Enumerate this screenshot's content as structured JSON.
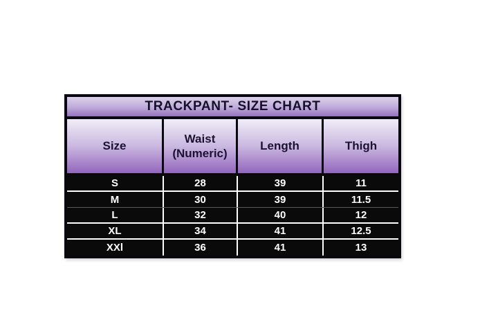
{
  "colors": {
    "accent_purple": "#9366bc",
    "title_gradient_top": "#dcd2ea",
    "header_gradient_top": "#f1edf7",
    "row_background": "#0a0a0a",
    "row_text": "#ffffff",
    "header_text": "#1b1232"
  },
  "chart_data": {
    "type": "table",
    "title": "TRACKPANT- SIZE CHART",
    "columns": [
      "Size",
      "Waist (Numeric)",
      "Length",
      "Thigh"
    ],
    "rows": [
      [
        "S",
        28,
        39,
        11
      ],
      [
        "M",
        30,
        39,
        11.5
      ],
      [
        "L",
        32,
        40,
        12
      ],
      [
        "XL",
        34,
        41,
        12.5
      ],
      [
        "XXl",
        36,
        41,
        13
      ]
    ]
  }
}
